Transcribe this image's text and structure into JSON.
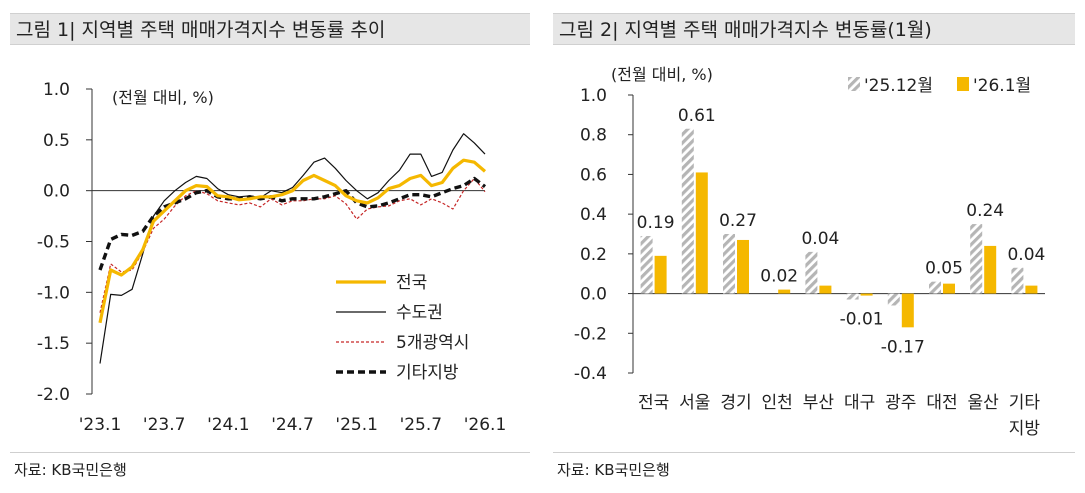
{
  "chart1": {
    "title": "그림 1| 지역별 주택 매매가격지수 변동률 추이",
    "source": "자료: KB국민은행",
    "chart_data": {
      "type": "line",
      "title": "그림 1| 지역별 주택 매매가격지수 변동률 추이",
      "unit_label": "(전월 대비, %)",
      "x_tick_labels": [
        "'23.1",
        "'23.7",
        "'24.1",
        "'24.7",
        "'25.1",
        "'25.7",
        "'26.1"
      ],
      "x_tick_index": [
        0,
        6,
        12,
        18,
        24,
        30,
        36
      ],
      "y_tick_labels": [
        "1.0",
        "0.5",
        "0.0",
        "-0.5",
        "-1.0",
        "-1.5",
        "-2.0"
      ],
      "y_ticks": [
        1.0,
        0.5,
        0.0,
        -0.5,
        -1.0,
        -1.5,
        -2.0
      ],
      "ylim": [
        -2.0,
        1.0
      ],
      "legend_position": "bottom-right",
      "series": [
        {
          "name": "전국",
          "color": "#f5b800",
          "style": "solid-thick",
          "values": [
            -1.3,
            -0.78,
            -0.83,
            -0.75,
            -0.58,
            -0.3,
            -0.2,
            -0.1,
            0.0,
            0.05,
            0.04,
            -0.05,
            -0.06,
            -0.09,
            -0.08,
            -0.06,
            -0.06,
            -0.04,
            0.0,
            0.1,
            0.15,
            0.1,
            0.05,
            -0.05,
            -0.1,
            -0.12,
            -0.07,
            0.02,
            0.05,
            0.12,
            0.15,
            0.05,
            0.08,
            0.22,
            0.3,
            0.28,
            0.19
          ]
        },
        {
          "name": "수도권",
          "color": "#111111",
          "style": "solid-thin",
          "values": [
            -1.7,
            -1.02,
            -1.03,
            -0.97,
            -0.62,
            -0.25,
            -0.1,
            0.0,
            0.08,
            0.14,
            0.12,
            0.02,
            -0.04,
            -0.06,
            -0.05,
            -0.07,
            0.0,
            -0.02,
            0.03,
            0.15,
            0.28,
            0.32,
            0.22,
            0.1,
            0.0,
            -0.08,
            -0.02,
            0.1,
            0.2,
            0.36,
            0.36,
            0.14,
            0.18,
            0.4,
            0.56,
            0.47,
            0.36
          ]
        },
        {
          "name": "5개광역시",
          "color": "#c62828",
          "style": "dashed-thin",
          "values": [
            -1.2,
            -0.72,
            -0.8,
            -0.78,
            -0.6,
            -0.37,
            -0.28,
            -0.15,
            -0.05,
            0.0,
            -0.03,
            -0.1,
            -0.12,
            -0.14,
            -0.12,
            -0.16,
            -0.08,
            -0.14,
            -0.1,
            -0.1,
            -0.08,
            -0.08,
            -0.05,
            -0.13,
            -0.28,
            -0.18,
            -0.16,
            -0.15,
            -0.1,
            -0.08,
            -0.14,
            -0.08,
            -0.12,
            -0.18,
            0.0,
            0.12,
            -0.01
          ]
        },
        {
          "name": "기타지방",
          "color": "#111111",
          "style": "dashed-thick",
          "values": [
            -0.78,
            -0.48,
            -0.43,
            -0.44,
            -0.4,
            -0.25,
            -0.16,
            -0.12,
            -0.08,
            -0.02,
            0.0,
            -0.06,
            -0.08,
            -0.08,
            -0.06,
            -0.08,
            -0.06,
            -0.1,
            -0.08,
            -0.08,
            -0.08,
            -0.06,
            -0.03,
            0.0,
            -0.12,
            -0.16,
            -0.15,
            -0.12,
            -0.08,
            -0.04,
            -0.04,
            -0.06,
            -0.02,
            0.02,
            0.05,
            0.12,
            0.04
          ]
        }
      ]
    }
  },
  "chart2": {
    "title": "그림 2| 지역별 주택 매매가격지수 변동률(1월)",
    "source": "자료: KB국민은행",
    "chart_data": {
      "type": "bar",
      "title": "그림 2| 지역별 주택 매매가격지수 변동률(1월)",
      "unit_label": "(전월 대비, %)",
      "categories": [
        "전국",
        "서울",
        "경기",
        "인천",
        "부산",
        "대구",
        "광주",
        "대전",
        "울산",
        "기타 지방"
      ],
      "category_label_lines": [
        [
          "전국"
        ],
        [
          "서울"
        ],
        [
          "경기"
        ],
        [
          "인천"
        ],
        [
          "부산"
        ],
        [
          "대구"
        ],
        [
          "광주"
        ],
        [
          "대전"
        ],
        [
          "울산"
        ],
        [
          "기타",
          "지방"
        ]
      ],
      "y_tick_labels": [
        "1.0",
        "0.8",
        "0.6",
        "0.4",
        "0.2",
        "0.0",
        "-0.2",
        "-0.4"
      ],
      "y_ticks": [
        1.0,
        0.8,
        0.6,
        0.4,
        0.2,
        0.0,
        -0.2,
        -0.4
      ],
      "ylim": [
        -0.4,
        1.0
      ],
      "legend_position": "top-right",
      "series": [
        {
          "name": "'25.12월",
          "color": "#b5b5b5",
          "pattern": "hatched",
          "values": [
            0.29,
            0.83,
            0.3,
            0.0,
            0.21,
            -0.03,
            -0.06,
            0.06,
            0.35,
            0.13
          ]
        },
        {
          "name": "'26.1월",
          "color": "#f5b800",
          "pattern": "solid",
          "values": [
            0.19,
            0.61,
            0.27,
            0.02,
            0.04,
            -0.01,
            -0.17,
            0.05,
            0.24,
            0.04
          ]
        }
      ],
      "data_label_series": "'26.1월",
      "data_labels": [
        "0.19",
        "0.61",
        "0.27",
        "0.02",
        "0.04",
        "-0.01",
        "-0.17",
        "0.05",
        "0.24",
        "0.04"
      ]
    }
  }
}
